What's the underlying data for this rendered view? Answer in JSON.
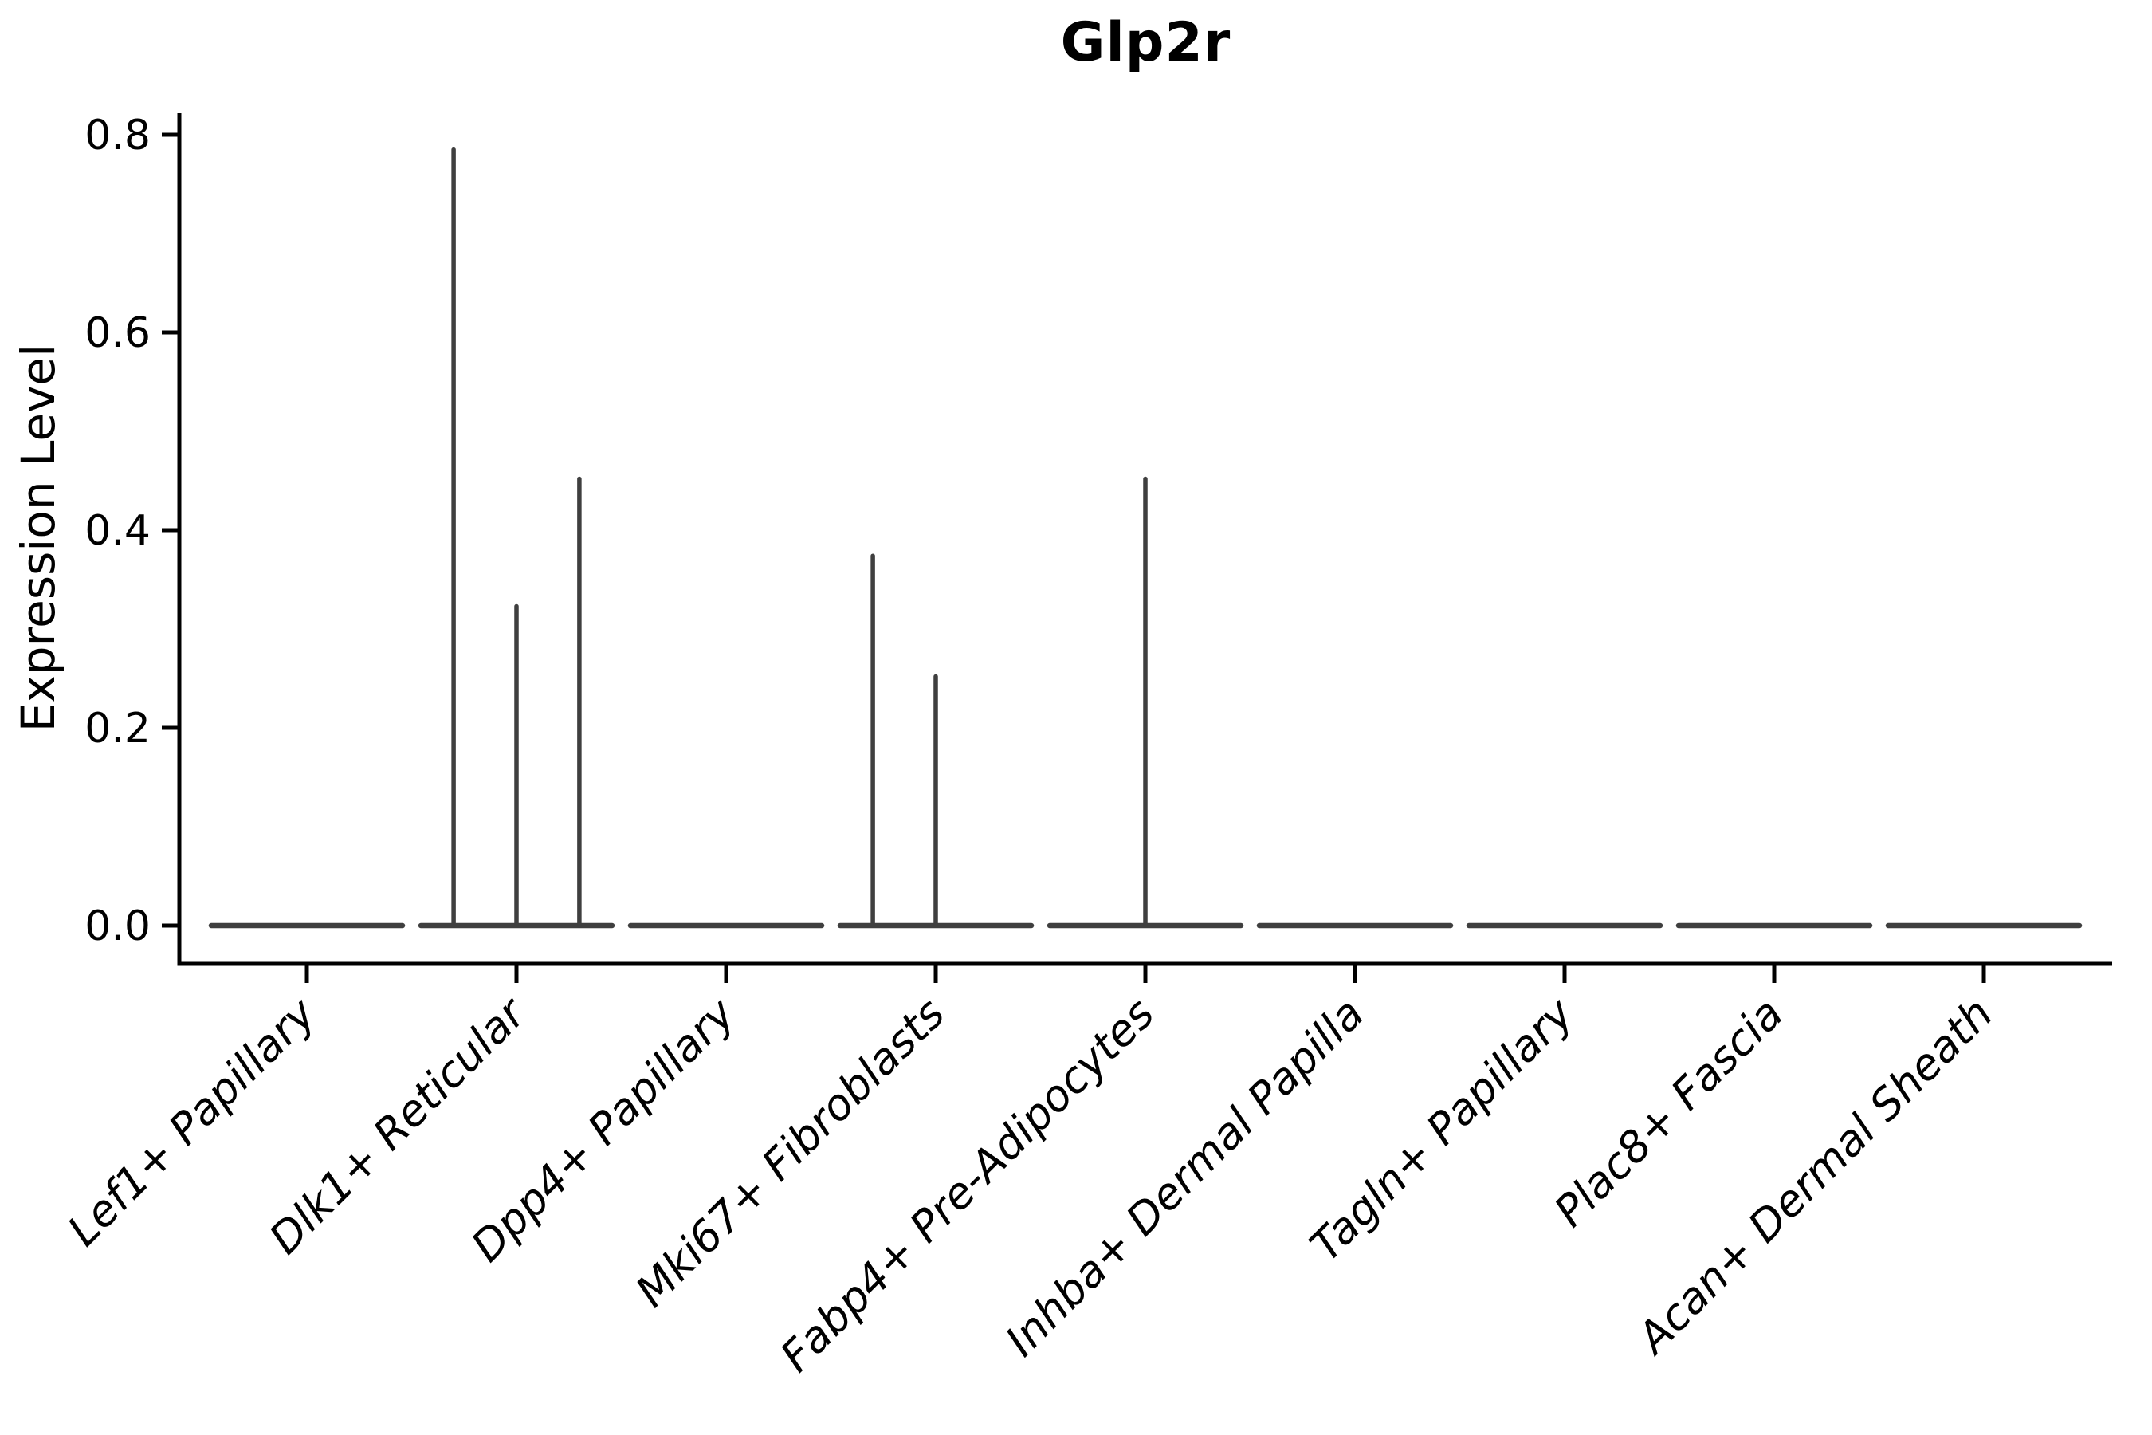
{
  "figure": {
    "title": "Glp2r",
    "ylabel": "Expression Level"
  },
  "chart_data": {
    "type": "violin",
    "title": "Glp2r",
    "xlabel": "",
    "ylabel": "Expression Level",
    "legend": "none",
    "grid": false,
    "ylim": [
      -0.04,
      0.82
    ],
    "y_ticks": [
      0.0,
      0.2,
      0.4,
      0.6,
      0.8
    ],
    "y_tick_labels": [
      "0.0",
      "0.2",
      "0.4",
      "0.6",
      "0.8"
    ],
    "categories": [
      "Lef1+ Papillary",
      "Dlk1+ Reticular",
      "Dpp4+ Papillary",
      "Mki67+ Fibroblasts",
      "Fabp4+ Pre-Adipocytes",
      "Inhba+ Dermal Papilla",
      "Tagln+ Papillary",
      "Plac8+ Fascia",
      "Acan+ Dermal Sheath"
    ],
    "description": "Collapsed violins: expression is ~0 for nearly all cells in every cluster (flat base line at 0), with thin density spikes for rare expressing cells.",
    "violins": [
      {
        "category": "Lef1+ Papillary",
        "base_value": 0.0,
        "spikes": []
      },
      {
        "category": "Dlk1+ Reticular",
        "base_value": 0.0,
        "spikes": [
          {
            "offset": -0.3,
            "value": 0.785
          },
          {
            "offset": 0.0,
            "value": 0.323
          },
          {
            "offset": 0.3,
            "value": 0.452
          }
        ]
      },
      {
        "category": "Dpp4+ Papillary",
        "base_value": 0.0,
        "spikes": []
      },
      {
        "category": "Mki67+ Fibroblasts",
        "base_value": 0.0,
        "spikes": [
          {
            "offset": -0.3,
            "value": 0.374
          },
          {
            "offset": 0.0,
            "value": 0.252
          }
        ]
      },
      {
        "category": "Fabp4+ Pre-Adipocytes",
        "base_value": 0.0,
        "spikes": [
          {
            "offset": 0.0,
            "value": 0.452
          }
        ]
      },
      {
        "category": "Inhba+ Dermal Papilla",
        "base_value": 0.0,
        "spikes": []
      },
      {
        "category": "Tagln+ Papillary",
        "base_value": 0.0,
        "spikes": []
      },
      {
        "category": "Plac8+ Fascia",
        "base_value": 0.0,
        "spikes": []
      },
      {
        "category": "Acan+ Dermal Sheath",
        "base_value": 0.0,
        "spikes": []
      }
    ],
    "colors": {
      "violin_line": "#3f3f3f",
      "axis": "#000000",
      "background": "#ffffff"
    }
  }
}
